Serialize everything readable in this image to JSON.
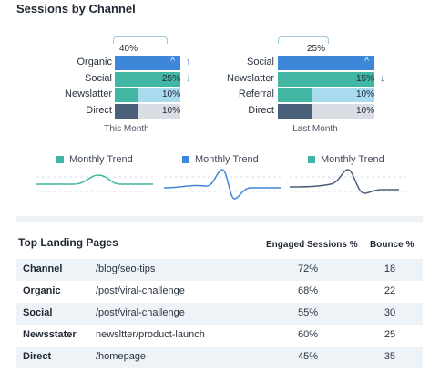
{
  "title": "Sessions by Channel",
  "colors": {
    "blue": "#3e86d7",
    "teal": "#41b6a3",
    "light_blue": "#a9dbef",
    "slate": "#4a607a",
    "table_alt": "#eef3f8"
  },
  "left_chart": {
    "pct_label": "40%",
    "caption": "This Month",
    "rows": [
      {
        "label": "Organic",
        "value_label": "",
        "icon": "chevron-up-icon",
        "arrow": "↑",
        "arrow_color": "#3e86d7",
        "share": 0.4
      },
      {
        "label": "Social",
        "value_label": "25%",
        "icon": "",
        "arrow": "↓",
        "arrow_color": "#41b6a3",
        "share": 0.25
      },
      {
        "label": "Newslatter",
        "value_label": "10%",
        "icon": "",
        "arrow": "",
        "arrow_color": "",
        "share": 0.1
      },
      {
        "label": "Direct",
        "value_label": "10%",
        "icon": "",
        "arrow": "",
        "arrow_color": "",
        "share": 0.1
      }
    ]
  },
  "right_chart": {
    "pct_label": "25%",
    "caption": "Last Month",
    "rows": [
      {
        "label": "Social",
        "value_label": "",
        "icon": "chevron-up-icon",
        "arrow": "",
        "arrow_color": "",
        "share": 0.25
      },
      {
        "label": "Newslatter",
        "value_label": "15%",
        "icon": "",
        "arrow": "↓",
        "arrow_color": "#4a607a",
        "share": 0.15
      },
      {
        "label": "Referral",
        "value_label": "10%",
        "icon": "",
        "arrow": "",
        "arrow_color": "",
        "share": 0.1
      },
      {
        "label": "Direct",
        "value_label": "10%",
        "icon": "",
        "arrow": "",
        "arrow_color": "",
        "share": 0.1
      }
    ]
  },
  "trends": [
    {
      "label": "Monthly Trend",
      "swatch": "#41b6a3",
      "line": "#41b6a3"
    },
    {
      "label": "Monthly Trend",
      "swatch": "#3e86d7",
      "line": "#3e86d7"
    },
    {
      "label": "Monthly Trend",
      "swatch": "#41b6a3",
      "line": "#4a607a"
    }
  ],
  "table": {
    "title": "Top Landing Pages",
    "headers": {
      "engaged": "Engaged Sessions %",
      "bounce": "Bounce %"
    },
    "rows": [
      {
        "channel": "Channel",
        "page": "/blog/seo-tips",
        "engaged": "72%",
        "bounce": "18"
      },
      {
        "channel": "Organic",
        "page": "/post/viral-challenge",
        "engaged": "68%",
        "bounce": "22"
      },
      {
        "channel": "Social",
        "page": "/post/viral-challenge",
        "engaged": "55%",
        "bounce": "30"
      },
      {
        "channel": "Newsstater",
        "page": "newsltter/product-launch",
        "engaged": "60%",
        "bounce": "25"
      },
      {
        "channel": "Direct",
        "page": "/homepage",
        "engaged": "45%",
        "bounce": "35"
      }
    ]
  }
}
